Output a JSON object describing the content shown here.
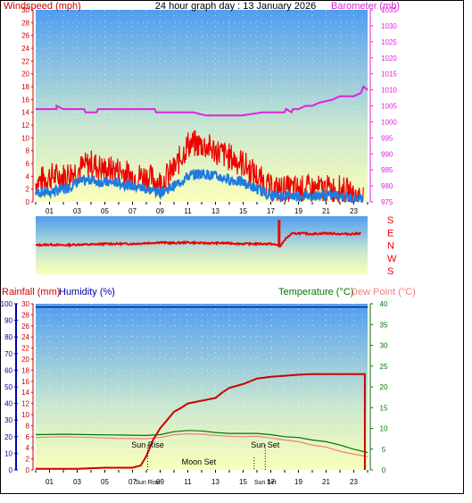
{
  "title": "24 hour graph day : 13 January 2026",
  "colors": {
    "wind_axis": "#cc0000",
    "baro": "#dd22dd",
    "wind_gust": "#ee0000",
    "wind_avg": "#1e7be0",
    "rain": "#cc0000",
    "humidity_axis": "#0000aa",
    "temp": "#007700",
    "dew": "#ee8080",
    "dir": "#ee0000"
  },
  "hour_labels": [
    "01",
    "03",
    "05",
    "07",
    "09",
    "11",
    "13",
    "15",
    "17",
    "19",
    "21",
    "23"
  ],
  "chart_data": [
    {
      "type": "line",
      "name": "wind-barometer",
      "left_label": "Windspeed (mph)",
      "right_label": "Barometer (mb)",
      "left_ylim": [
        0,
        30
      ],
      "left_ticks": [
        0,
        2,
        4,
        6,
        8,
        10,
        12,
        14,
        16,
        18,
        20,
        22,
        24,
        26,
        28,
        30
      ],
      "right_ylim": [
        975,
        1035
      ],
      "right_ticks": [
        975,
        980,
        985,
        990,
        995,
        1000,
        1005,
        1010,
        1015,
        1020,
        1025,
        1030,
        1035
      ],
      "xlim": [
        0,
        24
      ],
      "barometer": {
        "x": [
          0,
          1.5,
          1.5,
          2,
          3.5,
          3.6,
          4.4,
          4.5,
          5.3,
          5.4,
          8.6,
          8.7,
          9.0,
          9.1,
          11.3,
          11.4,
          12.3,
          12.4,
          14.8,
          14.9,
          16.4,
          16.5,
          18.0,
          18.1,
          18.5,
          18.6,
          19.0,
          19.5,
          20.0,
          20.5,
          21.5,
          22.0,
          23.0,
          23.5,
          23.7,
          24.0
        ],
        "y": [
          1004,
          1004,
          1005,
          1004,
          1004,
          1003,
          1003,
          1004,
          1004,
          1004,
          1004,
          1003,
          1003,
          1003,
          1003,
          1003,
          1002,
          1002,
          1002,
          1002,
          1003,
          1003,
          1003,
          1004,
          1003,
          1004,
          1004,
          1005,
          1005,
          1006,
          1007,
          1008,
          1008,
          1009,
          1011,
          1010
        ]
      },
      "gust": {
        "x": [
          0,
          1,
          2,
          3,
          4,
          5,
          6,
          7,
          8,
          9,
          10,
          11,
          12,
          13,
          14,
          15,
          16,
          17,
          17.5,
          18,
          19,
          20,
          21,
          22,
          23,
          24
        ],
        "y": [
          3,
          4,
          4,
          5,
          6,
          5,
          5,
          4,
          4,
          3,
          5,
          9,
          9,
          8,
          7,
          6,
          4,
          2,
          2,
          2,
          2,
          2,
          2,
          2,
          1,
          1
        ]
      },
      "avg": {
        "x": [
          0,
          1,
          2,
          3,
          4,
          5,
          6,
          7,
          8,
          9,
          10,
          11,
          12,
          13,
          14,
          15,
          16,
          17,
          17.5,
          18,
          19,
          20,
          21,
          22,
          23,
          24
        ],
        "y": [
          1.5,
          1.5,
          2,
          3,
          3.5,
          3,
          3,
          2.5,
          2,
          1.5,
          2.5,
          4,
          4.5,
          4,
          3.5,
          3,
          2,
          1,
          1,
          1,
          1,
          1,
          1,
          1,
          0.5,
          0.5
        ]
      }
    },
    {
      "type": "line",
      "name": "wind-direction",
      "dir_labels": [
        "S",
        "E",
        "N",
        "W",
        "S"
      ],
      "ylim": [
        0,
        360
      ],
      "x": [
        0,
        1,
        2,
        3,
        4,
        5,
        6,
        7,
        8,
        9,
        10,
        11,
        12,
        13,
        14,
        15,
        16,
        17,
        17.5,
        17.7,
        18,
        18.5,
        19,
        20,
        21,
        22,
        23,
        23.5
      ],
      "y": [
        180,
        185,
        180,
        185,
        185,
        190,
        190,
        190,
        195,
        200,
        195,
        200,
        195,
        195,
        195,
        190,
        190,
        190,
        180,
        170,
        220,
        260,
        265,
        260,
        265,
        260,
        260,
        265
      ]
    },
    {
      "type": "line",
      "name": "rain-humidity-temperature",
      "rain_label": "Rainfall (mm)",
      "humidity_label": "Humidity (%)",
      "temp_label": "Temperature (°C)",
      "dew_label": "Dew Point (°C)",
      "rain_ylim": [
        0,
        30
      ],
      "rain_ticks": [
        0,
        2,
        4,
        6,
        8,
        10,
        12,
        14,
        16,
        18,
        20,
        22,
        24,
        26,
        28,
        30
      ],
      "humidity_ylim": [
        0,
        100
      ],
      "humidity_ticks": [
        0,
        10,
        20,
        30,
        40,
        50,
        60,
        70,
        80,
        90,
        100
      ],
      "temp_ylim": [
        0,
        40
      ],
      "temp_ticks": [
        0,
        5,
        10,
        15,
        20,
        25,
        30,
        35,
        40
      ],
      "humidity": {
        "x": [
          0,
          24
        ],
        "y": [
          98,
          98
        ]
      },
      "rainfall": {
        "x": [
          0,
          1,
          2,
          3,
          4,
          5,
          6,
          7,
          7.6,
          8.0,
          8.5,
          9.0,
          9.5,
          10.0,
          10.5,
          11.0,
          12.0,
          13.0,
          13.5,
          14.0,
          15.0,
          16.0,
          17.0,
          18.0,
          19.0,
          20.0,
          21.0,
          22.0,
          23.0,
          23.8,
          23.8
        ],
        "y": [
          0.2,
          0.2,
          0.2,
          0.2,
          0.3,
          0.4,
          0.4,
          0.4,
          0.8,
          2.5,
          5.5,
          7.5,
          9.0,
          10.5,
          11.2,
          12.0,
          12.5,
          13.0,
          14.0,
          14.8,
          15.5,
          16.5,
          16.8,
          17.0,
          17.2,
          17.3,
          17.3,
          17.3,
          17.3,
          17.3,
          0
        ]
      },
      "temperature": {
        "x": [
          0,
          2,
          4,
          6,
          8,
          9,
          10,
          11,
          12,
          13,
          14,
          15,
          16,
          17,
          18,
          19,
          20,
          21,
          22,
          23,
          24
        ],
        "y": [
          8.5,
          8.6,
          8.5,
          8.4,
          8.3,
          8.5,
          9.2,
          9.5,
          9.4,
          9.0,
          8.8,
          8.8,
          8.8,
          8.5,
          8.0,
          7.8,
          7.2,
          6.8,
          6.0,
          5.0,
          4.2
        ]
      },
      "dewpoint": {
        "x": [
          0,
          2,
          4,
          6,
          8,
          9,
          10,
          11,
          12,
          13,
          14,
          15,
          16,
          17,
          18,
          19,
          20,
          21,
          22,
          23,
          24
        ],
        "y": [
          7.8,
          8.0,
          7.8,
          7.6,
          7.5,
          7.8,
          8.5,
          8.7,
          8.6,
          8.3,
          8.1,
          8.0,
          8.1,
          7.7,
          7.2,
          6.8,
          6.0,
          5.5,
          4.5,
          3.8,
          3.2
        ]
      },
      "events": [
        {
          "label": "Sun Rise",
          "x": 8.1,
          "kind": "sun"
        },
        {
          "label": "Sun Set",
          "x": 16.6,
          "kind": "sun"
        },
        {
          "label": "Moon Set",
          "x": 11.8,
          "kind": "moon"
        }
      ]
    }
  ]
}
